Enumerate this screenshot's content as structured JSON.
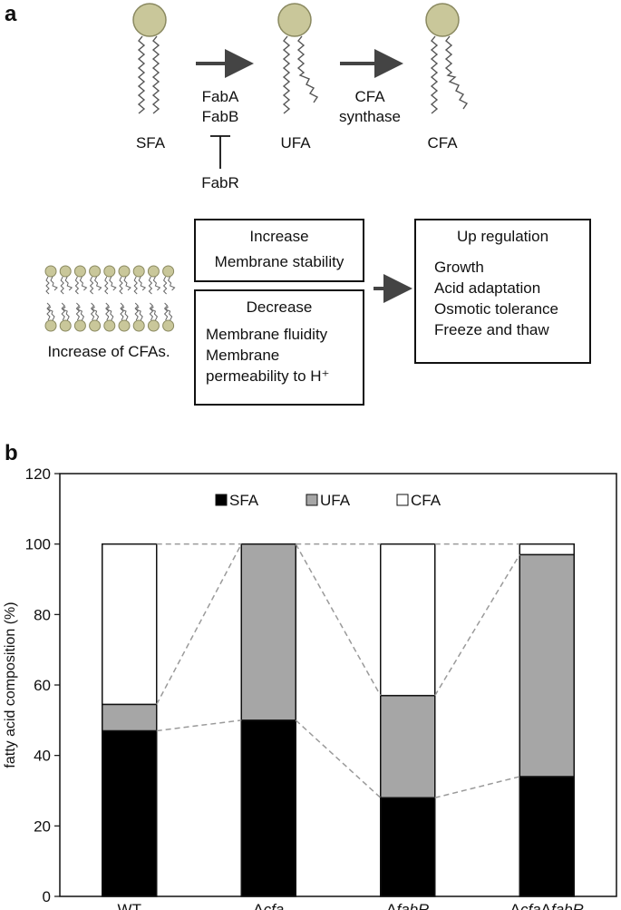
{
  "panel_a": {
    "letter": "a",
    "lipids": {
      "sfa": "SFA",
      "ufa": "UFA",
      "cfa": "CFA"
    },
    "enzymes1": [
      "FabA",
      "FabB"
    ],
    "enzymes2": [
      "CFA",
      "synthase"
    ],
    "regulator": "FabR",
    "membrane_caption": "Increase of CFAs.",
    "increase_box": {
      "title": "Increase",
      "items": [
        "Membrane stability"
      ]
    },
    "decrease_box": {
      "title": "Decrease",
      "items": [
        "Membrane fluidity",
        "Membrane",
        "permeability to H⁺"
      ]
    },
    "upreg_box": {
      "title": "Up regulation",
      "items": [
        "Growth",
        "Acid adaptation",
        "Osmotic tolerance",
        "Freeze and thaw"
      ]
    },
    "colors": {
      "head": "#c9c79a",
      "head_stroke": "#8a8960"
    }
  },
  "panel_b": {
    "letter": "b"
  },
  "chart_data": {
    "type": "bar",
    "stacked": true,
    "categories": [
      "WT",
      "Δcfa",
      "ΔfabR",
      "ΔcfaΔfabR"
    ],
    "series": [
      {
        "name": "SFA",
        "values": [
          47,
          50,
          28,
          34
        ],
        "color": "#000000"
      },
      {
        "name": "UFA",
        "values": [
          7.5,
          50,
          29,
          63
        ],
        "color": "#a6a6a6"
      },
      {
        "name": "CFA",
        "values": [
          45.5,
          0,
          43,
          3
        ],
        "color": "#ffffff"
      }
    ],
    "ylabel": "fatty acid composition (%)",
    "xlabel": "",
    "ylim": [
      0,
      120
    ],
    "yticks": [
      0,
      20,
      40,
      60,
      80,
      100,
      120
    ],
    "legend": "top-center",
    "connectors": "dashed gray lines between adjacent stacked segment boundaries"
  }
}
